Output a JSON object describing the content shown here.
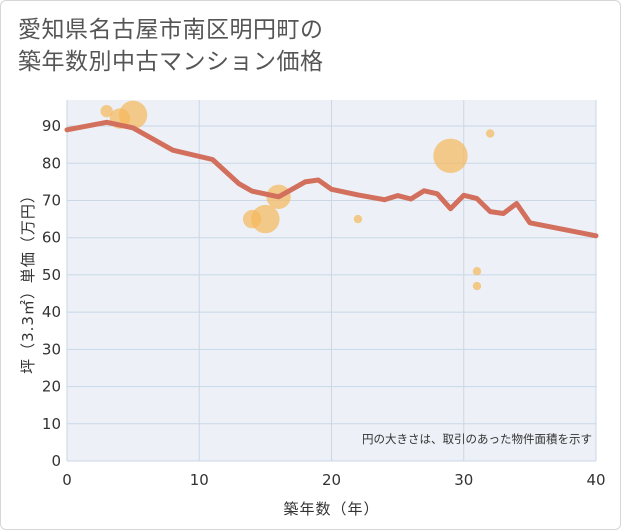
{
  "title_line1": "愛知県名古屋市南区明円町の",
  "title_line2": "築年数別中古マンション価格",
  "chart_data": {
    "type": "scatter+line",
    "xlabel": "築年数（年）",
    "ylabel": "坪（3.3㎡）単価（万円）",
    "xlim": [
      0,
      40
    ],
    "ylim": [
      0,
      97
    ],
    "xticks": [
      0,
      10,
      20,
      30,
      40
    ],
    "yticks": [
      0,
      10,
      20,
      30,
      40,
      50,
      60,
      70,
      80,
      90
    ],
    "note": "円の大きさは、取引のあった物件面積を示す",
    "colors": {
      "line": "#d2705d",
      "bubble": "#f5b85a",
      "grid": "#c9d7e6",
      "plot_bg": "#edf1f7"
    },
    "trend_line": {
      "x": [
        0,
        3,
        5,
        8,
        11,
        13,
        14,
        16,
        18,
        19,
        20,
        22,
        24,
        25,
        26,
        27,
        28,
        29,
        30,
        31,
        32,
        33,
        34,
        35,
        40
      ],
      "y": [
        89,
        91,
        89.5,
        83.5,
        81,
        74.5,
        72.5,
        71,
        75,
        75.5,
        73,
        71.5,
        70.2,
        71.3,
        70.4,
        72.6,
        71.8,
        67.8,
        71.4,
        70.5,
        67,
        66.5,
        69.2,
        64,
        60.5
      ]
    },
    "bubbles": [
      {
        "x": 3,
        "y": 94,
        "size": 4
      },
      {
        "x": 4,
        "y": 92,
        "size": 8
      },
      {
        "x": 5,
        "y": 93,
        "size": 12
      },
      {
        "x": 14,
        "y": 65,
        "size": 7
      },
      {
        "x": 15,
        "y": 65,
        "size": 12
      },
      {
        "x": 16,
        "y": 71,
        "size": 10
      },
      {
        "x": 22,
        "y": 65,
        "size": 2
      },
      {
        "x": 29,
        "y": 82,
        "size": 15
      },
      {
        "x": 31,
        "y": 51,
        "size": 2
      },
      {
        "x": 31,
        "y": 47,
        "size": 2
      },
      {
        "x": 32,
        "y": 88,
        "size": 2
      }
    ]
  }
}
